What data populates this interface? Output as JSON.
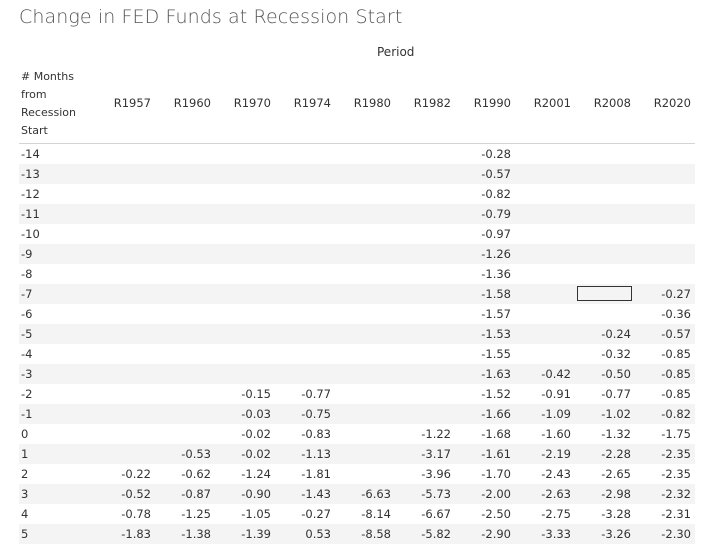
{
  "title": "Change in FED Funds at Recession Start",
  "column_group_label": "Period",
  "row_header_label": "# Months\nfrom\nRecession\nStart",
  "chart_data": {
    "type": "table",
    "columns": [
      "R1957",
      "R1960",
      "R1970",
      "R1974",
      "R1980",
      "R1982",
      "R1990",
      "R2001",
      "R2008",
      "R2020"
    ],
    "rows": [
      {
        "label": "-14",
        "values": [
          null,
          null,
          null,
          null,
          null,
          null,
          "-0.28",
          null,
          null,
          null
        ]
      },
      {
        "label": "-13",
        "values": [
          null,
          null,
          null,
          null,
          null,
          null,
          "-0.57",
          null,
          null,
          null
        ]
      },
      {
        "label": "-12",
        "values": [
          null,
          null,
          null,
          null,
          null,
          null,
          "-0.82",
          null,
          null,
          null
        ]
      },
      {
        "label": "-11",
        "values": [
          null,
          null,
          null,
          null,
          null,
          null,
          "-0.79",
          null,
          null,
          null
        ]
      },
      {
        "label": "-10",
        "values": [
          null,
          null,
          null,
          null,
          null,
          null,
          "-0.97",
          null,
          null,
          null
        ]
      },
      {
        "label": "-9",
        "values": [
          null,
          null,
          null,
          null,
          null,
          null,
          "-1.26",
          null,
          null,
          null
        ]
      },
      {
        "label": "-8",
        "values": [
          null,
          null,
          null,
          null,
          null,
          null,
          "-1.36",
          null,
          null,
          null
        ]
      },
      {
        "label": "-7",
        "values": [
          null,
          null,
          null,
          null,
          null,
          null,
          "-1.58",
          null,
          null,
          "-0.27"
        ]
      },
      {
        "label": "-6",
        "values": [
          null,
          null,
          null,
          null,
          null,
          null,
          "-1.57",
          null,
          null,
          "-0.36"
        ]
      },
      {
        "label": "-5",
        "values": [
          null,
          null,
          null,
          null,
          null,
          null,
          "-1.53",
          null,
          "-0.24",
          "-0.57"
        ]
      },
      {
        "label": "-4",
        "values": [
          null,
          null,
          null,
          null,
          null,
          null,
          "-1.55",
          null,
          "-0.32",
          "-0.85"
        ]
      },
      {
        "label": "-3",
        "values": [
          null,
          null,
          null,
          null,
          null,
          null,
          "-1.63",
          "-0.42",
          "-0.50",
          "-0.85"
        ]
      },
      {
        "label": "-2",
        "values": [
          null,
          null,
          "-0.15",
          "-0.77",
          null,
          null,
          "-1.52",
          "-0.91",
          "-0.77",
          "-0.85"
        ]
      },
      {
        "label": "-1",
        "values": [
          null,
          null,
          "-0.03",
          "-0.75",
          null,
          null,
          "-1.66",
          "-1.09",
          "-1.02",
          "-0.82"
        ]
      },
      {
        "label": "0",
        "values": [
          null,
          null,
          "-0.02",
          "-0.83",
          null,
          "-1.22",
          "-1.68",
          "-1.60",
          "-1.32",
          "-1.75"
        ]
      },
      {
        "label": "1",
        "values": [
          null,
          "-0.53",
          "-0.02",
          "-1.13",
          null,
          "-3.17",
          "-1.61",
          "-2.19",
          "-2.28",
          "-2.35"
        ]
      },
      {
        "label": "2",
        "values": [
          "-0.22",
          "-0.62",
          "-1.24",
          "-1.81",
          null,
          "-3.96",
          "-1.70",
          "-2.43",
          "-2.65",
          "-2.35"
        ]
      },
      {
        "label": "3",
        "values": [
          "-0.52",
          "-0.87",
          "-0.90",
          "-1.43",
          "-6.63",
          "-5.73",
          "-2.00",
          "-2.63",
          "-2.98",
          "-2.32"
        ]
      },
      {
        "label": "4",
        "values": [
          "-0.78",
          "-1.25",
          "-1.05",
          "-0.27",
          "-8.14",
          "-6.67",
          "-2.50",
          "-2.75",
          "-3.28",
          "-2.31"
        ]
      },
      {
        "label": "5",
        "values": [
          "-1.83",
          "-1.38",
          "-1.39",
          "0.53",
          "-8.58",
          "-5.82",
          "-2.90",
          "-3.33",
          "-3.26",
          "-2.30"
        ]
      }
    ]
  }
}
